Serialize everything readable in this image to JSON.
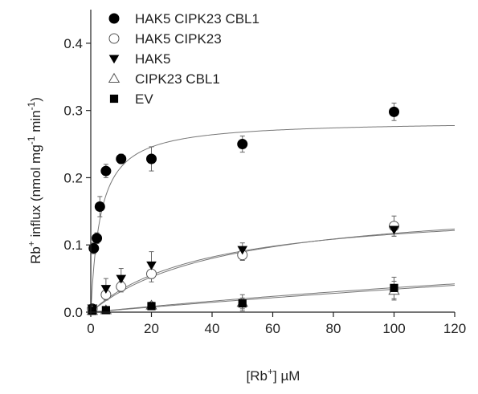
{
  "chart_data": {
    "type": "scatter",
    "xlabel": {
      "pre": "[Rb",
      "sup": "+",
      "post": "] µM"
    },
    "ylabel": {
      "a": "Rb",
      "a_sup": "+",
      "b": " influx (nmol mg",
      "b_sup": "-1",
      "c": " min",
      "c_sup": "-1",
      "d": ")"
    },
    "xlim": [
      0,
      120
    ],
    "ylim": [
      0,
      0.45
    ],
    "xticks": [
      0,
      20,
      40,
      60,
      80,
      100,
      120
    ],
    "yticks": [
      0.0,
      0.1,
      0.2,
      0.3,
      0.4
    ],
    "ytick_labels": [
      "0.0",
      "0.1",
      "0.2",
      "0.3",
      "0.4"
    ],
    "legend_position": "top-left",
    "grid": false,
    "series": [
      {
        "name": "HAK5 CIPK23 CBL1",
        "marker": "filled-circle",
        "x": [
          0.5,
          1,
          2,
          3,
          5,
          10,
          20,
          50,
          100
        ],
        "y": [
          0.005,
          0.095,
          0.11,
          0.157,
          0.21,
          0.228,
          0.228,
          0.25,
          0.298
        ],
        "err": [
          0.003,
          0.008,
          0.008,
          0.015,
          0.01,
          0.007,
          0.018,
          0.012,
          0.013
        ],
        "fit": {
          "vmax": 0.285,
          "km": 3.2
        }
      },
      {
        "name": "HAK5 CIPK23",
        "marker": "open-circle",
        "x": [
          0.5,
          5,
          10,
          20,
          50,
          100
        ],
        "y": [
          0.004,
          0.026,
          0.038,
          0.057,
          0.085,
          0.128
        ],
        "err": [
          0.003,
          0.008,
          0.008,
          0.012,
          0.008,
          0.015
        ],
        "fit": {
          "vmax": 0.17,
          "km": 45
        }
      },
      {
        "name": "HAK5",
        "marker": "filled-triangle-down",
        "x": [
          0.5,
          5,
          10,
          20,
          50,
          100
        ],
        "y": [
          0.006,
          0.035,
          0.05,
          0.07,
          0.093,
          0.123
        ],
        "err": [
          0.003,
          0.015,
          0.015,
          0.02,
          0.01,
          0.01
        ],
        "fit": {
          "vmax": 0.16,
          "km": 38
        }
      },
      {
        "name": "CIPK23 CBL1",
        "marker": "open-triangle-up",
        "x": [
          0.5,
          5,
          20,
          50,
          100
        ],
        "y": [
          0.002,
          0.003,
          0.01,
          0.014,
          0.032
        ],
        "err": [
          0.002,
          0.002,
          0.005,
          0.012,
          0.014
        ],
        "fit": {
          "vmax": 0.2,
          "km": 450
        }
      },
      {
        "name": "EV",
        "marker": "filled-square",
        "x": [
          0.5,
          5,
          20,
          50,
          100
        ],
        "y": [
          0.002,
          0.003,
          0.009,
          0.013,
          0.036
        ],
        "err": [
          0.002,
          0.002,
          0.004,
          0.008,
          0.016
        ],
        "fit": {
          "vmax": 0.3,
          "km": 780
        }
      }
    ]
  }
}
